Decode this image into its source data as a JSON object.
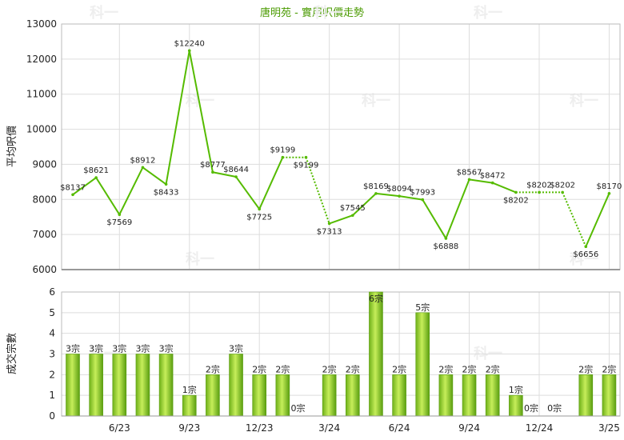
{
  "title": "唐明苑 - 實用呎價走勢",
  "watermark": "科一",
  "colors": {
    "line": "#55bb00",
    "bar_light": "#b4e24a",
    "bar_dark": "#5a9e10",
    "title": "#4a9a00"
  },
  "chart_data": [
    {
      "type": "line",
      "ylabel": "平均呎價",
      "ylim": [
        6000,
        13000
      ],
      "yticks": [
        "6000",
        "7000",
        "8000",
        "9000",
        "10000",
        "11000",
        "12000",
        "13000"
      ],
      "grid": true,
      "points": [
        {
          "label": "$8137",
          "value": 8137
        },
        {
          "label": "$8621",
          "value": 8621
        },
        {
          "label": "$7569",
          "value": 7569
        },
        {
          "label": "$8912",
          "value": 8912
        },
        {
          "label": "$8433",
          "value": 8433
        },
        {
          "label": "$12240",
          "value": 12240
        },
        {
          "label": "$8777",
          "value": 8777
        },
        {
          "label": "$8644",
          "value": 8644
        },
        {
          "label": "$7725",
          "value": 7725
        },
        {
          "label": "$9199",
          "value": 9199
        },
        {
          "label": "$9199",
          "value": 9199,
          "interpolated": true
        },
        {
          "label": "$7313",
          "value": 7313
        },
        {
          "label": "$7545",
          "value": 7545
        },
        {
          "label": "$8169",
          "value": 8169
        },
        {
          "label": "$8094",
          "value": 8094
        },
        {
          "label": "$7993",
          "value": 7993
        },
        {
          "label": "$6888",
          "value": 6888
        },
        {
          "label": "$8567",
          "value": 8567
        },
        {
          "label": "$8472",
          "value": 8472
        },
        {
          "label": "$8202",
          "value": 8202
        },
        {
          "label": "$8202",
          "value": 8202,
          "interpolated": true
        },
        {
          "label": "$8202",
          "value": 8202,
          "interpolated": true
        },
        {
          "label": "$6656",
          "value": 6656
        },
        {
          "label": "$8170",
          "value": 8170
        }
      ]
    },
    {
      "type": "bar",
      "ylabel": "成交宗數",
      "ylim": [
        0,
        6
      ],
      "yticks": [
        "0",
        "1",
        "2",
        "3",
        "4",
        "5",
        "6"
      ],
      "grid": true,
      "x_ticks": [
        {
          "index": 2,
          "label": "6/23"
        },
        {
          "index": 5,
          "label": "9/23"
        },
        {
          "index": 8,
          "label": "12/23"
        },
        {
          "index": 11,
          "label": "3/24"
        },
        {
          "index": 14,
          "label": "6/24"
        },
        {
          "index": 17,
          "label": "9/24"
        },
        {
          "index": 20,
          "label": "12/24"
        },
        {
          "index": 23,
          "label": "3/25"
        }
      ],
      "values": [
        3,
        3,
        3,
        3,
        3,
        1,
        2,
        3,
        2,
        2,
        0,
        2,
        2,
        6,
        2,
        5,
        2,
        2,
        2,
        1,
        0,
        0,
        2,
        2
      ],
      "labels": [
        "3宗",
        "3宗",
        "3宗",
        "3宗",
        "3宗",
        "1宗",
        "2宗",
        "3宗",
        "2宗",
        "2宗",
        "0宗",
        "2宗",
        "2宗",
        "6宗",
        "2宗",
        "5宗",
        "2宗",
        "2宗",
        "2宗",
        "1宗",
        "0宗",
        "0宗",
        "2宗",
        "2宗"
      ]
    }
  ]
}
